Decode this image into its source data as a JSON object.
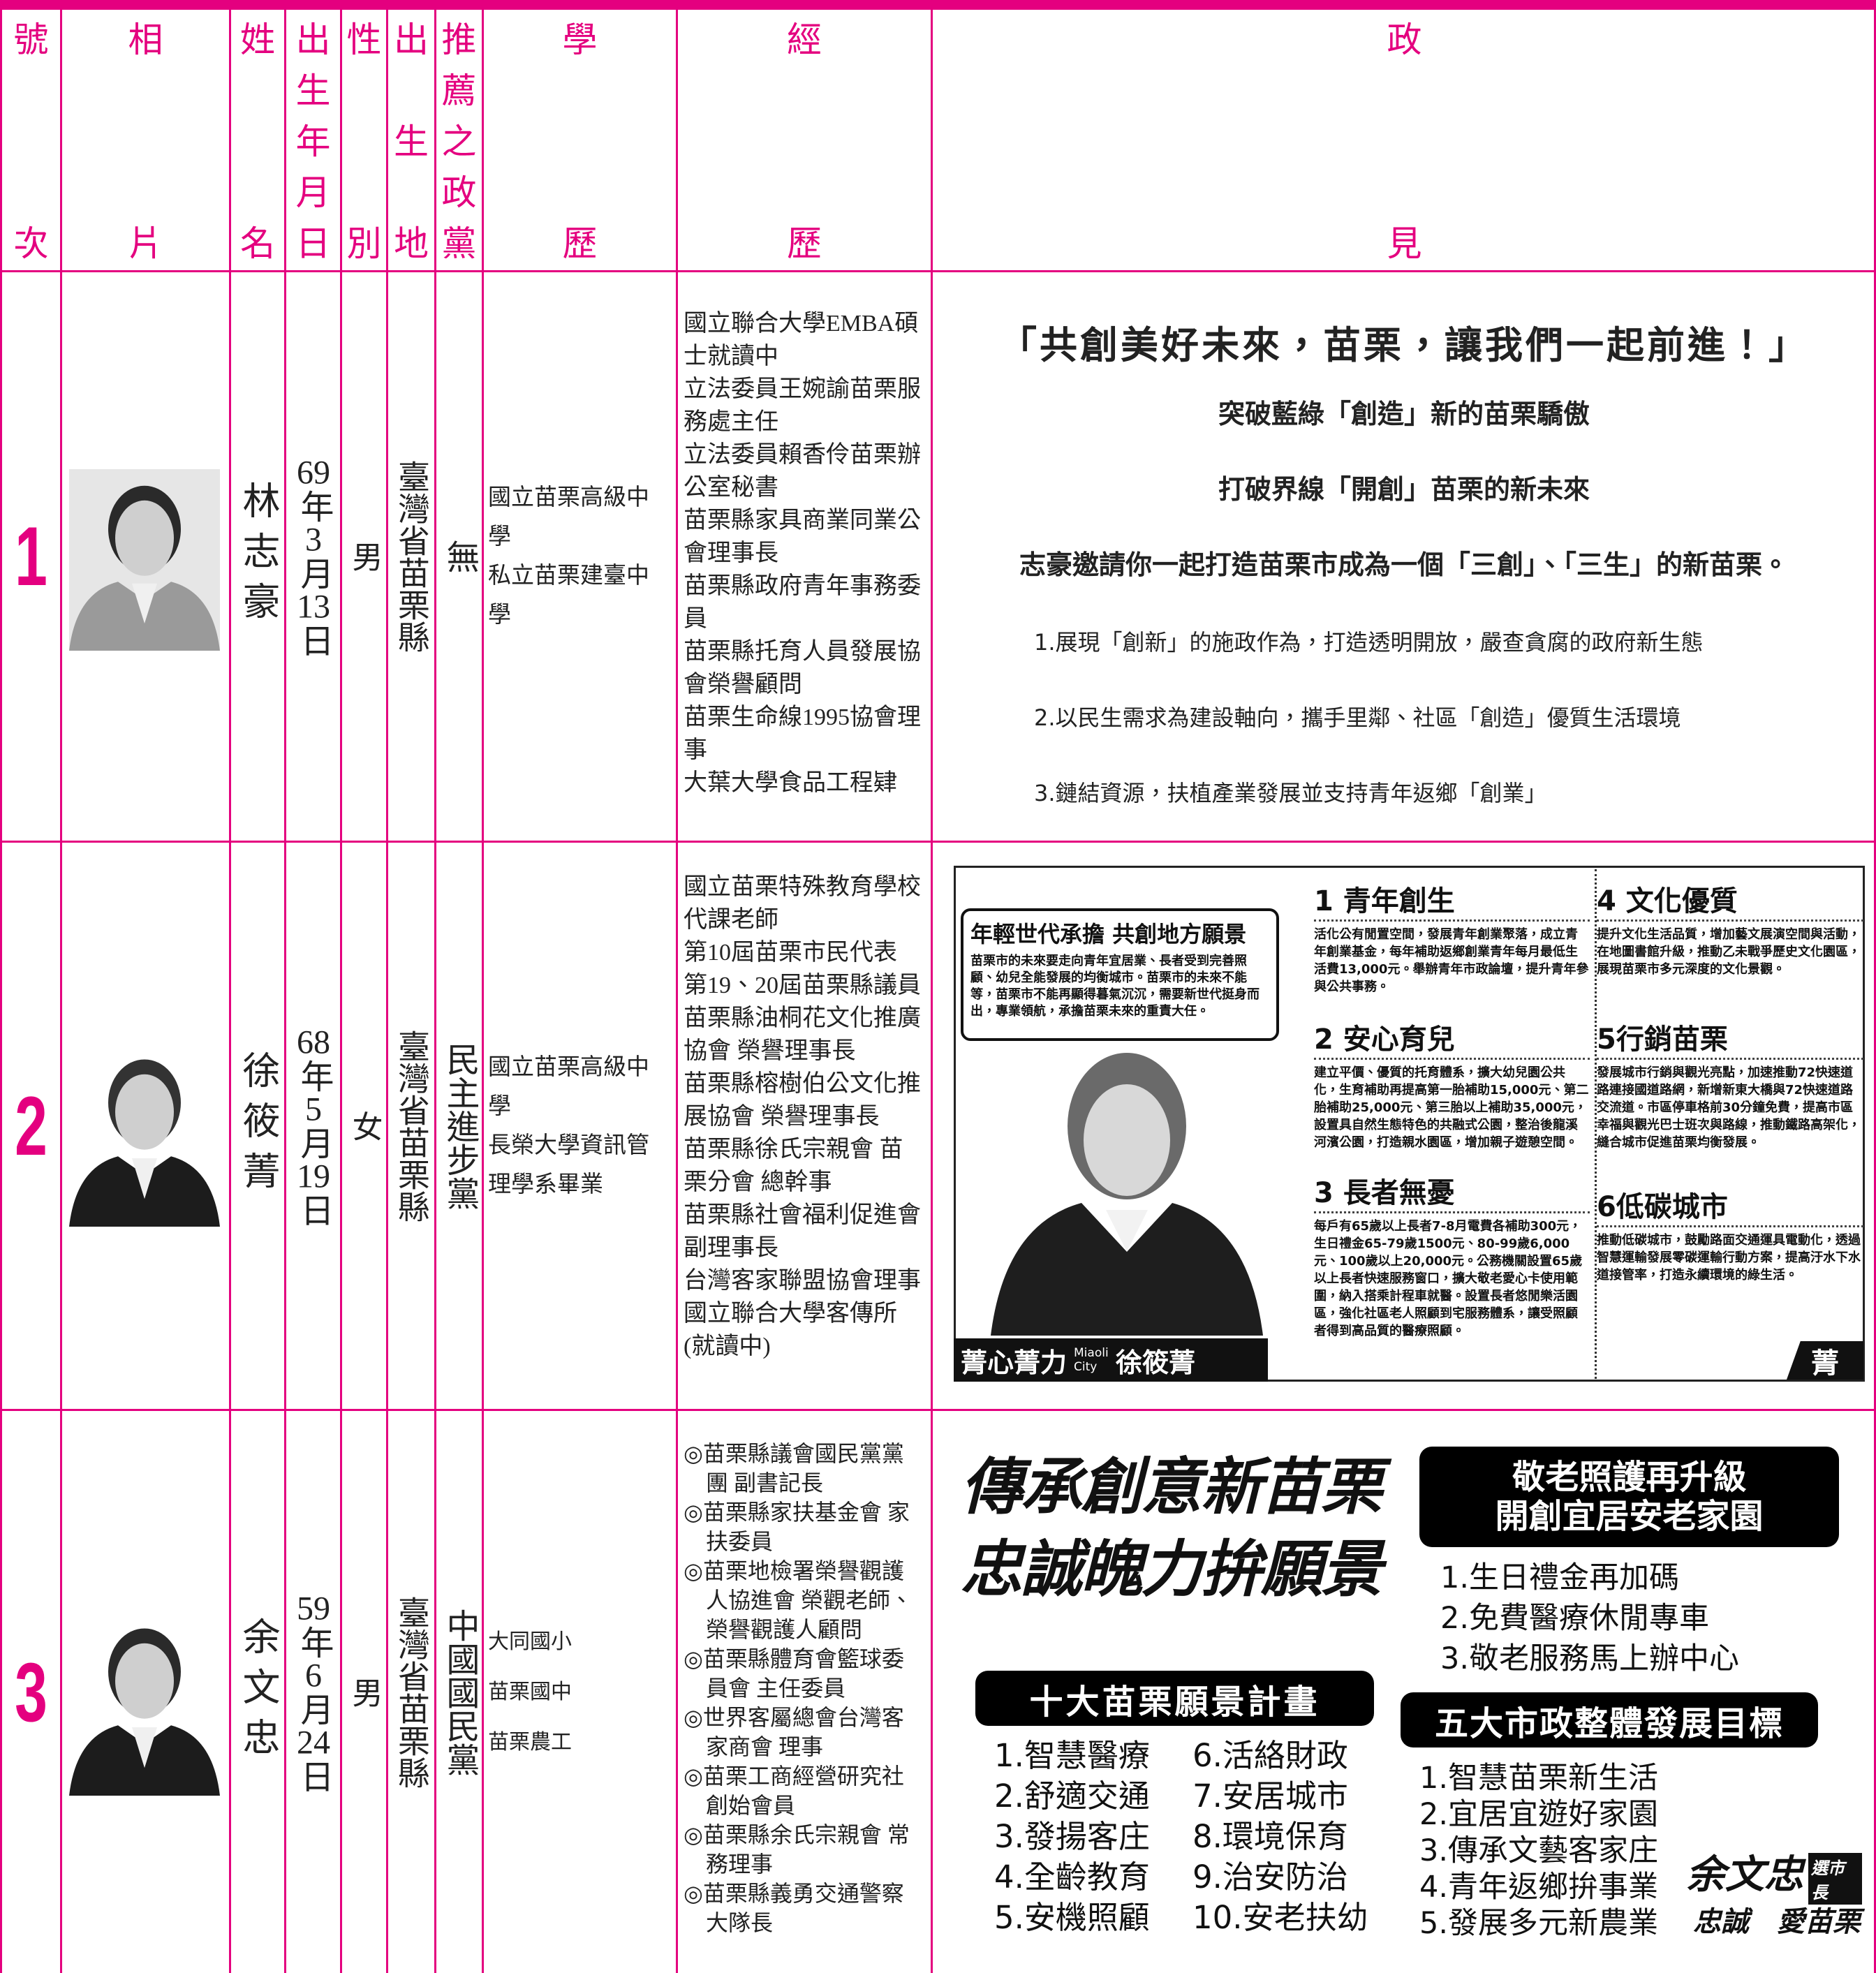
{
  "header": {
    "columns": [
      "號次",
      "相片",
      "姓名",
      "出生年月日",
      "性別",
      "出生地",
      "推薦之政黨",
      "學歷",
      "經歷",
      "政見"
    ]
  },
  "candidates": [
    {
      "number": "1",
      "name": "林志豪",
      "birth_date": "69年3月13日",
      "gender": "男",
      "birthplace": "臺灣省苗栗縣",
      "party": "無",
      "education": [
        "國立苗栗高級中學",
        "私立苗栗建臺中學"
      ],
      "experience": [
        "國立聯合大學EMBA碩士就讀中",
        "立法委員王婉諭苗栗服務處主任",
        "立法委員賴香伶苗栗辦公室秘書",
        "苗栗縣家具商業同業公會理事長",
        "苗栗縣政府青年事務委員",
        "苗栗縣托育人員發展協會榮譽顧問",
        "苗栗生命線1995協會理事",
        "大葉大學食品工程肄"
      ],
      "platform": {
        "slogan": "「共創美好未來，苗栗，讓我們一起前進！」",
        "statements": [
          "突破藍綠「創造」新的苗栗驕傲",
          "打破界線「開創」苗栗的新未來",
          "志豪邀請你一起打造苗栗市成為一個「三創」、「三生」的新苗栗。"
        ],
        "points": [
          "1.展現「創新」的施政作為，打造透明開放，嚴查貪腐的政府新生態",
          "2.以民生需求為建設軸向，攜手里鄰、社區「創造」優質生活環境",
          "3.鏈結資源，扶植產業發展並支持青年返鄉「創業」"
        ]
      }
    },
    {
      "number": "2",
      "name": "徐筱菁",
      "birth_date": "68年5月19日",
      "gender": "女",
      "birthplace": "臺灣省苗栗縣",
      "party": "民主進步黨",
      "education": [
        "國立苗栗高級中學",
        "長榮大學資訊管理學系畢業"
      ],
      "experience": [
        "國立苗栗特殊教育學校代課老師",
        "第10屆苗栗市民代表",
        "第19、20屆苗栗縣議員",
        "苗栗縣油桐花文化推廣協會 榮譽理事長",
        "苗栗縣榕樹伯公文化推展協會 榮譽理事長",
        "苗栗縣徐氏宗親會 苗栗分會 總幹事",
        "苗栗縣社會福利促進會副理事長",
        "台灣客家聯盟協會理事",
        "國立聯合大學客傳所(就讀中)"
      ],
      "platform": {
        "headline": "年輕世代承擔 共創地方願景",
        "intro": "苗栗市的未來要走向青年宜居業、長者受到完善照顧、幼兒全能發展的均衡城市。苗栗市的未來不能等，苗栗市不能再顯得暮氣沉沉，需要新世代挺身而出，專業領航，承擔苗栗未來的重責大任。",
        "items": [
          {
            "title": "1 青年創生",
            "text": "活化公有閒置空間，發展青年創業聚落，成立青年創業基金，每年補助返鄉創業青年每月最低生活費13,000元。舉辦青年市政論壇，提升青年參與公共事務。"
          },
          {
            "title": "2 安心育兒",
            "text": "建立平價、優質的托育體系，擴大幼兒園公共化，生育補助再提高第一胎補助15,000元、第二胎補助25,000元、第三胎以上補助35,000元，設置具自然生態特色的共融式公園，整治後龍溪河濱公園，打造親水園區，增加親子遊憩空間。"
          },
          {
            "title": "3 長者無憂",
            "text": "每戶有65歲以上長者7-8月電費各補助300元，生日禮金65-79歲1500元、80-99歲6,000元、100歲以上20,000元。公務機關設置65歲以上長者快速服務窗口，擴大敬老愛心卡使用範圍，納入搭乘計程車就醫。設置長者悠閒樂活園區，強化社區老人照顧到宅服務體系，讓受照顧者得到高品質的醫療照顧。"
          },
          {
            "title": "4 文化優質",
            "text": "提升文化生活品質，增加藝文展演空間與活動，在地圖書館升級，推動乙未戰爭歷史文化園區，展現苗栗市多元深度的文化景觀。"
          },
          {
            "title": "5行銷苗栗",
            "text": "發展城市行銷與觀光亮點，加速推動72快速道路連接國道路網，新增新東大橋與72快速道路交流道。市區停車格前30分鐘免費，提高市區幸福與觀光巴士班次與路線，推動鐵路高架化，縫合城市促進苗栗均衡發展。"
          },
          {
            "title": "6低碳城市",
            "text": "推動低碳城市，鼓勵路面交通運具電動化，透過智慧運輸發展零碳運輸行動方案，提高汙水下水道接管率，打造永續環境的綠生活。"
          }
        ],
        "footer_slogan": "菁心菁力",
        "footer_city": "Miaoli City",
        "footer_name": "徐筱菁",
        "footer_mark": "菁"
      }
    },
    {
      "number": "3",
      "name": "余文忠",
      "birth_date": "59年6月24日",
      "gender": "男",
      "birthplace": "臺灣省苗栗縣",
      "party": "中國國民黨",
      "education": [
        "大同國小",
        "苗栗國中",
        "苗栗農工"
      ],
      "experience": [
        "◎苗栗縣議會國民黨黨團 副書記長",
        "◎苗栗縣家扶基金會 家扶委員",
        "◎苗栗地檢署榮譽觀護人協進會 榮觀老師、榮譽觀護人顧問",
        "◎苗栗縣體育會籃球委員會 主任委員",
        "◎世界客屬總會台灣客家商會 理事",
        "◎苗栗工商經營研究社創始會員",
        "◎苗栗縣余氏宗親會 常務理事",
        "◎苗栗縣義勇交通警察大隊長"
      ],
      "platform": {
        "slogan": [
          "傳承創意新苗栗",
          "忠誠魄力拚願景"
        ],
        "senior_title": [
          "敬老照護再升級",
          "開創宜居安老家園"
        ],
        "senior_items": [
          "1.生日禮金再加碼",
          "2.免費醫療休閒專車",
          "3.敬老服務馬上辦中心"
        ],
        "vision_title": "十大苗栗願景計畫",
        "vision_items": [
          "1.智慧醫療",
          "2.舒適交通",
          "3.發揚客庄",
          "4.全齡教育",
          "5.安機照顧",
          "6.活絡財政",
          "7.安居城市",
          "8.環境保育",
          "9.治安防治",
          "10.安老扶幼"
        ],
        "goals_title": "五大市政整體發展目標",
        "goals_items": [
          "1.智慧苗栗新生活",
          "2.宜居宜遊好家園",
          "3.傳承文藝客家庄",
          "4.青年返鄉拚事業",
          "5.發展多元新農業"
        ],
        "logo": [
          "余文忠",
          "選市長",
          "忠誠",
          "愛苗栗"
        ]
      }
    }
  ]
}
